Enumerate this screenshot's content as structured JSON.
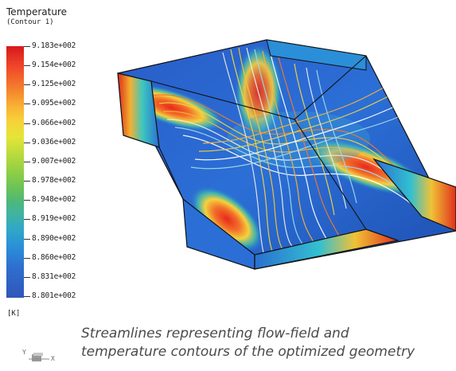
{
  "legend": {
    "title": "Temperature",
    "subtitle": "(Contour 1)",
    "unit": "[K]",
    "values": [
      "9.183e+002",
      "9.154e+002",
      "9.125e+002",
      "9.095e+002",
      "9.066e+002",
      "9.036e+002",
      "9.007e+002",
      "8.978e+002",
      "8.948e+002",
      "8.919e+002",
      "8.890e+002",
      "8.860e+002",
      "8.831e+002",
      "8.801e+002"
    ],
    "colors": {
      "max": "#d7191c",
      "high": "#f9b233",
      "mid": "#8fcf45",
      "low": "#2fa7c9",
      "min": "#2f57b9"
    }
  },
  "axes": {
    "y_label": "Y",
    "x_label": "X"
  },
  "caption": {
    "line1": "Streamlines representing flow-field and",
    "line2": "temperature contours of the optimized geometry"
  }
}
